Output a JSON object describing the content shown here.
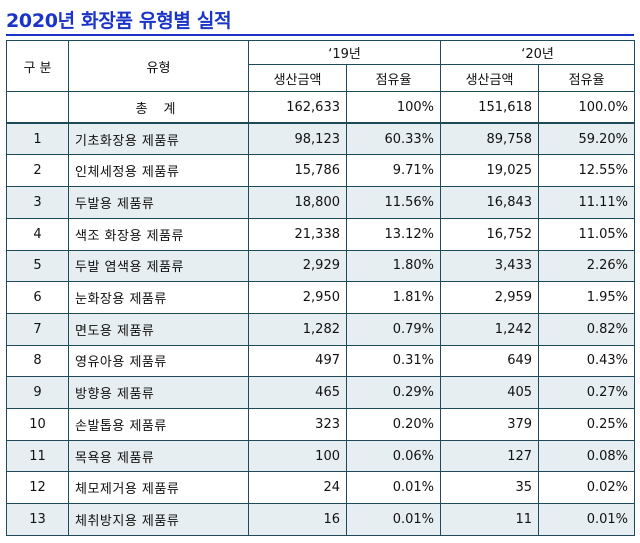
{
  "title": "2020년 화장품 유형별 실적",
  "header": {
    "col_group": "구 분",
    "col_type": "유형",
    "year_19": "‘19년",
    "year_20": "‘20년",
    "production": "생산금액",
    "share": "점유율"
  },
  "rows": [
    {
      "no": "",
      "type": "총 계",
      "p19": "162,633",
      "s19": "100%",
      "p20": "151,618",
      "s20": "100.0%"
    },
    {
      "no": "1",
      "type": "기초화장용 제품류",
      "p19": "98,123",
      "s19": "60.33%",
      "p20": "89,758",
      "s20": "59.20%"
    },
    {
      "no": "2",
      "type": "인체세정용 제품류",
      "p19": "15,786",
      "s19": "9.71%",
      "p20": "19,025",
      "s20": "12.55%"
    },
    {
      "no": "3",
      "type": "두발용 제품류",
      "p19": "18,800",
      "s19": "11.56%",
      "p20": "16,843",
      "s20": "11.11%"
    },
    {
      "no": "4",
      "type": "색조 화장용 제품류",
      "p19": "21,338",
      "s19": "13.12%",
      "p20": "16,752",
      "s20": "11.05%"
    },
    {
      "no": "5",
      "type": "두발 염색용 제품류",
      "p19": "2,929",
      "s19": "1.80%",
      "p20": "3,433",
      "s20": "2.26%"
    },
    {
      "no": "6",
      "type": "눈화장용 제품류",
      "p19": "2,950",
      "s19": "1.81%",
      "p20": "2,959",
      "s20": "1.95%"
    },
    {
      "no": "7",
      "type": "면도용 제품류",
      "p19": "1,282",
      "s19": "0.79%",
      "p20": "1,242",
      "s20": "0.82%"
    },
    {
      "no": "8",
      "type": "영유아용 제품류",
      "p19": "497",
      "s19": "0.31%",
      "p20": "649",
      "s20": "0.43%"
    },
    {
      "no": "9",
      "type": "방향용 제품류",
      "p19": "465",
      "s19": "0.29%",
      "p20": "405",
      "s20": "0.27%"
    },
    {
      "no": "10",
      "type": "손발톱용 제품류",
      "p19": "323",
      "s19": "0.20%",
      "p20": "379",
      "s20": "0.25%"
    },
    {
      "no": "11",
      "type": "목욕용 제품류",
      "p19": "100",
      "s19": "0.06%",
      "p20": "127",
      "s20": "0.08%"
    },
    {
      "no": "12",
      "type": "체모제거용 제품류",
      "p19": "24",
      "s19": "0.01%",
      "p20": "35",
      "s20": "0.02%"
    },
    {
      "no": "13",
      "type": "체취방지용 제품류",
      "p19": "16",
      "s19": "0.01%",
      "p20": "11",
      "s20": "0.01%"
    }
  ]
}
